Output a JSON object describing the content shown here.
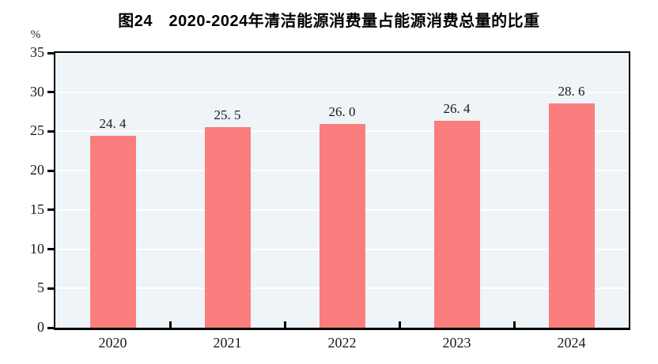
{
  "page": {
    "background": "#ffffff"
  },
  "chart_data": {
    "type": "bar",
    "title": "图24　2020-2024年清洁能源消费量占能源消费总量的比重",
    "unit_label": "%",
    "categories": [
      "2020",
      "2021",
      "2022",
      "2023",
      "2024"
    ],
    "values": [
      24.4,
      25.5,
      26.0,
      26.4,
      28.6
    ],
    "value_labels": [
      "24. 4",
      "25. 5",
      "26. 0",
      "26. 4",
      "28. 6"
    ],
    "xlabel": "",
    "ylabel": "%",
    "ylim": [
      0,
      35
    ],
    "ytick_step": 5,
    "ytick_labels": [
      "0",
      "5",
      "10",
      "15",
      "20",
      "25",
      "30",
      "35"
    ],
    "grid": true,
    "legend": "none",
    "colors": {
      "bar": "#FC7D7D",
      "plot_background": "#EEF4F7",
      "gridline": "#FFFFFF",
      "axis": "#000000",
      "text": "#1a1a1a"
    }
  }
}
